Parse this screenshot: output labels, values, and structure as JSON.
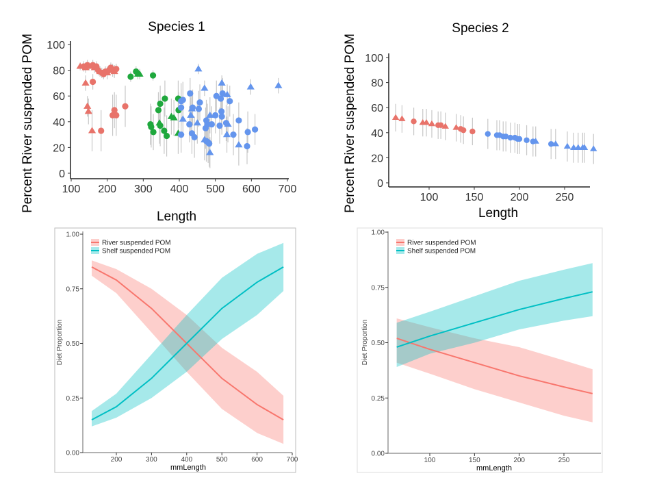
{
  "colors": {
    "river": "#F8766D",
    "shelf": "#00BFC4",
    "red_group": "#E8736A",
    "green_group": "#1FA83D",
    "blue_group": "#6495ED",
    "error_bar": "#C8C8C8"
  },
  "chart_data": [
    {
      "type": "scatter",
      "title": "Species 1",
      "xlabel": "Length",
      "ylabel": "Percent River suspended POM",
      "xlim": [
        100,
        700
      ],
      "ylim": [
        0,
        100
      ],
      "xticks": [
        100,
        200,
        300,
        400,
        500,
        600,
        700
      ],
      "yticks": [
        0,
        20,
        40,
        60,
        80,
        100
      ],
      "grid": false,
      "point_format": [
        "x",
        "y",
        "error",
        "shape"
      ],
      "groups": [
        {
          "color": "red",
          "points": [
            [
              125,
              83,
              3,
              "t"
            ],
            [
              135,
              83,
              4,
              "c"
            ],
            [
              140,
              82,
              4,
              "t"
            ],
            [
              145,
              84,
              4,
              "c"
            ],
            [
              150,
              83,
              3,
              "t"
            ],
            [
              160,
              84,
              4,
              "c"
            ],
            [
              165,
              82,
              4,
              "t"
            ],
            [
              170,
              83,
              4,
              "c"
            ],
            [
              175,
              80,
              4,
              "c"
            ],
            [
              180,
              79,
              4,
              "t"
            ],
            [
              185,
              78,
              4,
              "c"
            ],
            [
              190,
              77,
              4,
              "c"
            ],
            [
              195,
              79,
              4,
              "c"
            ],
            [
              200,
              78,
              5,
              "t"
            ],
            [
              205,
              80,
              4,
              "c"
            ],
            [
              210,
              82,
              4,
              "c"
            ],
            [
              215,
              80,
              5,
              "c"
            ],
            [
              220,
              79,
              5,
              "t"
            ],
            [
              225,
              81,
              4,
              "c"
            ],
            [
              140,
              70,
              6,
              "t"
            ],
            [
              160,
              71,
              6,
              "c"
            ],
            [
              145,
              52,
              8,
              "t"
            ],
            [
              148,
              48,
              10,
              "t"
            ],
            [
              158,
              33,
              16,
              "t"
            ],
            [
              183,
              33,
              16,
              "c"
            ],
            [
              215,
              45,
              16,
              "c"
            ],
            [
              220,
              49,
              14,
              "c"
            ],
            [
              225,
              45,
              16,
              "c"
            ],
            [
              250,
              52,
              16,
              "c"
            ]
          ]
        },
        {
          "color": "green",
          "points": [
            [
              265,
              75,
              4,
              "c"
            ],
            [
              280,
              79,
              4,
              "c"
            ],
            [
              285,
              77,
              4,
              "t"
            ],
            [
              290,
              77,
              4,
              "t"
            ],
            [
              327,
              76,
              4,
              "c"
            ],
            [
              320,
              38,
              16,
              "c"
            ],
            [
              322,
              36,
              16,
              "c"
            ],
            [
              328,
              32,
              14,
              "c"
            ],
            [
              342,
              49,
              14,
              "c"
            ],
            [
              347,
              54,
              14,
              "c"
            ],
            [
              345,
              39,
              16,
              "t"
            ],
            [
              347,
              37,
              16,
              "c"
            ],
            [
              360,
              58,
              14,
              "c"
            ],
            [
              358,
              33,
              18,
              "c"
            ],
            [
              365,
              29,
              16,
              "c"
            ],
            [
              378,
              44,
              14,
              "t"
            ],
            [
              385,
              43,
              14,
              "t"
            ],
            [
              397,
              58,
              14,
              "c"
            ],
            [
              398,
              49,
              14,
              "c"
            ],
            [
              397,
              31,
              16,
              "t"
            ]
          ]
        },
        {
          "color": "blue",
          "points": [
            [
              453,
              81,
              4,
              "t"
            ],
            [
              470,
              66,
              6,
              "t"
            ],
            [
              518,
              70,
              6,
              "t"
            ],
            [
              533,
              61,
              8,
              "t"
            ],
            [
              598,
              67,
              6,
              "t"
            ],
            [
              675,
              68,
              6,
              "t"
            ],
            [
              430,
              62,
              12,
              "c"
            ],
            [
              405,
              56,
              14,
              "c"
            ],
            [
              410,
              57,
              14,
              "c"
            ],
            [
              405,
              51,
              14,
              "c"
            ],
            [
              410,
              42,
              14,
              "t"
            ],
            [
              428,
              38,
              14,
              "c"
            ],
            [
              405,
              30,
              14,
              "c"
            ],
            [
              432,
              45,
              14,
              "t"
            ],
            [
              435,
              50,
              14,
              "t"
            ],
            [
              437,
              51,
              14,
              "c"
            ],
            [
              435,
              31,
              16,
              "c"
            ],
            [
              442,
              28,
              16,
              "c"
            ],
            [
              450,
              39,
              16,
              "t"
            ],
            [
              454,
              50,
              14,
              "c"
            ],
            [
              457,
              55,
              14,
              "c"
            ],
            [
              470,
              26,
              16,
              "t"
            ],
            [
              473,
              35,
              16,
              "c"
            ],
            [
              475,
              41,
              16,
              "c"
            ],
            [
              478,
              38,
              16,
              "c"
            ],
            [
              475,
              25,
              16,
              "c"
            ],
            [
              480,
              24,
              16,
              "c"
            ],
            [
              483,
              23,
              18,
              "c"
            ],
            [
              485,
              45,
              14,
              "t"
            ],
            [
              485,
              16,
              12,
              "t"
            ],
            [
              490,
              38,
              14,
              "c"
            ],
            [
              500,
              45,
              14,
              "c"
            ],
            [
              503,
              60,
              12,
              "c"
            ],
            [
              512,
              37,
              14,
              "c"
            ],
            [
              515,
              58,
              12,
              "c"
            ],
            [
              517,
              48,
              14,
              "c"
            ],
            [
              518,
              44,
              14,
              "c"
            ],
            [
              520,
              62,
              12,
              "c"
            ],
            [
              530,
              39,
              14,
              "c"
            ],
            [
              535,
              38,
              14,
              "t"
            ],
            [
              540,
              56,
              12,
              "c"
            ],
            [
              532,
              30,
              14,
              "t"
            ],
            [
              550,
              30,
              16,
              "c"
            ],
            [
              565,
              41,
              14,
              "c"
            ],
            [
              565,
              22,
              16,
              "t"
            ],
            [
              588,
              21,
              14,
              "c"
            ],
            [
              590,
              32,
              16,
              "c"
            ],
            [
              610,
              34,
              12,
              "c"
            ]
          ]
        }
      ]
    },
    {
      "type": "scatter",
      "title": "Species 2",
      "xlabel": "Length",
      "ylabel": "Percent River suspended POM",
      "xlim": [
        55,
        290
      ],
      "ylim": [
        0,
        100
      ],
      "xticks": [
        100,
        150,
        200,
        250
      ],
      "yticks": [
        0,
        20,
        40,
        60,
        80,
        100
      ],
      "grid": false,
      "point_format": [
        "x",
        "y",
        "error",
        "shape"
      ],
      "groups": [
        {
          "color": "red",
          "points": [
            [
              63,
              52,
              11,
              "t"
            ],
            [
              70,
              51,
              11,
              "t"
            ],
            [
              83,
              49,
              11,
              "c"
            ],
            [
              93,
              48,
              11,
              "t"
            ],
            [
              97,
              48,
              11,
              "t"
            ],
            [
              103,
              47,
              11,
              "t"
            ],
            [
              110,
              46,
              11,
              "c"
            ],
            [
              113,
              46,
              11,
              "c"
            ],
            [
              118,
              45,
              11,
              "t"
            ],
            [
              130,
              44,
              11,
              "t"
            ],
            [
              135,
              43,
              11,
              "c"
            ],
            [
              138,
              42,
              11,
              "c"
            ],
            [
              148,
              41,
              11,
              "c"
            ]
          ]
        },
        {
          "color": "blue",
          "points": [
            [
              165,
              39,
              12,
              "c"
            ],
            [
              175,
              38,
              12,
              "c"
            ],
            [
              178,
              38,
              12,
              "c"
            ],
            [
              182,
              37,
              12,
              "c"
            ],
            [
              185,
              37,
              12,
              "c"
            ],
            [
              190,
              36,
              12,
              "c"
            ],
            [
              195,
              36,
              12,
              "c"
            ],
            [
              198,
              35,
              12,
              "c"
            ],
            [
              200,
              35,
              12,
              "c"
            ],
            [
              208,
              34,
              12,
              "c"
            ],
            [
              215,
              33,
              12,
              "c"
            ],
            [
              218,
              33,
              12,
              "t"
            ],
            [
              235,
              31,
              12,
              "c"
            ],
            [
              240,
              31,
              12,
              "t"
            ],
            [
              253,
              29,
              12,
              "t"
            ],
            [
              260,
              28,
              12,
              "t"
            ],
            [
              265,
              28,
              12,
              "t"
            ],
            [
              270,
              28,
              12,
              "t"
            ],
            [
              272,
              28,
              12,
              "t"
            ],
            [
              282,
              27,
              12,
              "t"
            ]
          ]
        }
      ]
    },
    {
      "type": "line",
      "xlabel": "mmLength",
      "ylabel": "Diet Proportion",
      "xlim": [
        100,
        700
      ],
      "ylim": [
        0,
        1
      ],
      "xticks": [
        200,
        300,
        400,
        500,
        600,
        700
      ],
      "yticks": [
        "0.00",
        "0.25",
        "0.50",
        "0.75",
        "1.00"
      ],
      "legend": "top-left",
      "grid": false,
      "series": [
        {
          "name": "River suspended POM",
          "color": "river",
          "x": [
            130,
            200,
            300,
            400,
            500,
            600,
            675
          ],
          "y": [
            0.85,
            0.79,
            0.66,
            0.5,
            0.34,
            0.22,
            0.15
          ],
          "lo": [
            0.81,
            0.73,
            0.55,
            0.37,
            0.2,
            0.09,
            0.04
          ],
          "hi": [
            0.88,
            0.84,
            0.75,
            0.63,
            0.48,
            0.37,
            0.26
          ]
        },
        {
          "name": "Shelf suspended POM",
          "color": "shelf",
          "x": [
            130,
            200,
            300,
            400,
            500,
            600,
            675
          ],
          "y": [
            0.15,
            0.21,
            0.34,
            0.5,
            0.66,
            0.78,
            0.85
          ],
          "lo": [
            0.12,
            0.16,
            0.25,
            0.37,
            0.52,
            0.63,
            0.74
          ],
          "hi": [
            0.19,
            0.27,
            0.45,
            0.63,
            0.8,
            0.91,
            0.96
          ]
        }
      ]
    },
    {
      "type": "line",
      "xlabel": "mmLength",
      "ylabel": "Diet Proportion",
      "xlim": [
        55,
        290
      ],
      "ylim": [
        0,
        1
      ],
      "xticks": [
        100,
        150,
        200,
        250
      ],
      "yticks": [
        "0.00",
        "0.25",
        "0.50",
        "0.75",
        "1.00"
      ],
      "legend": "top-left",
      "grid": false,
      "series": [
        {
          "name": "River suspended POM",
          "color": "river",
          "x": [
            63,
            100,
            150,
            200,
            250,
            282
          ],
          "y": [
            0.52,
            0.47,
            0.41,
            0.35,
            0.3,
            0.27
          ],
          "lo": [
            0.41,
            0.36,
            0.29,
            0.23,
            0.17,
            0.14
          ],
          "hi": [
            0.61,
            0.57,
            0.52,
            0.48,
            0.42,
            0.38
          ]
        },
        {
          "name": "Shelf suspended POM",
          "color": "shelf",
          "x": [
            63,
            100,
            150,
            200,
            250,
            282
          ],
          "y": [
            0.48,
            0.53,
            0.59,
            0.65,
            0.7,
            0.73
          ],
          "lo": [
            0.39,
            0.45,
            0.5,
            0.56,
            0.6,
            0.62
          ],
          "hi": [
            0.59,
            0.64,
            0.71,
            0.78,
            0.83,
            0.86
          ]
        }
      ]
    }
  ]
}
